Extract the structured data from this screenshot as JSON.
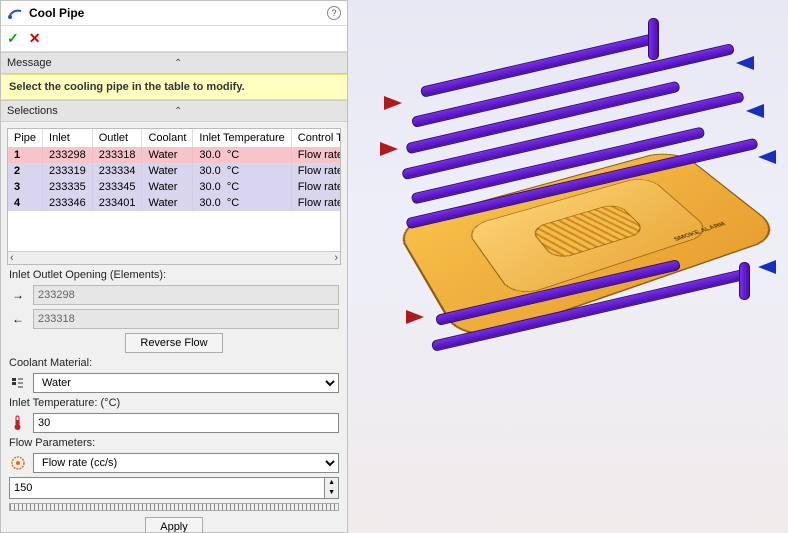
{
  "title": "Cool Pipe",
  "message": {
    "header": "Message",
    "text": "Select the cooling pipe in the table to modify."
  },
  "selections": {
    "header": "Selections",
    "columns": [
      "Pipe",
      "Inlet",
      "Outlet",
      "Coolant",
      "Inlet Temperature",
      "Control Type"
    ],
    "rows": [
      {
        "pipe": "1",
        "inlet": "233298",
        "outlet": "233318",
        "coolant": "Water",
        "temp": "30.0",
        "unit": "°C",
        "ctrl": "Flow rate"
      },
      {
        "pipe": "2",
        "inlet": "233319",
        "outlet": "233334",
        "coolant": "Water",
        "temp": "30.0",
        "unit": "°C",
        "ctrl": "Flow rate"
      },
      {
        "pipe": "3",
        "inlet": "233335",
        "outlet": "233345",
        "coolant": "Water",
        "temp": "30.0",
        "unit": "°C",
        "ctrl": "Flow rate"
      },
      {
        "pipe": "4",
        "inlet": "233346",
        "outlet": "233401",
        "coolant": "Water",
        "temp": "30.0",
        "unit": "°C",
        "ctrl": "Flow rate"
      }
    ]
  },
  "inletOutlet": {
    "label": "Inlet Outlet Opening (Elements):",
    "inlet": "233298",
    "outlet": "233318",
    "reverse_label": "Reverse Flow"
  },
  "coolant": {
    "label": "Coolant Material:",
    "value": "Water"
  },
  "inletTemp": {
    "label": "Inlet Temperature: (°C)",
    "value": "30"
  },
  "flowParams": {
    "label": "Flow Parameters:",
    "mode": "Flow rate (cc/s)",
    "value": "150",
    "apply_label": "Apply"
  },
  "device_label": "SMOKE\nALARM",
  "colors": {
    "highlight_row": "#f7c5c9",
    "alt_row": "#d9d5ee",
    "msg_bg": "#ffffc0",
    "pipe": "#5a19c9",
    "device": "#eca83a",
    "arrow_in": "#1530c0",
    "arrow_out": "#b01a1a"
  }
}
